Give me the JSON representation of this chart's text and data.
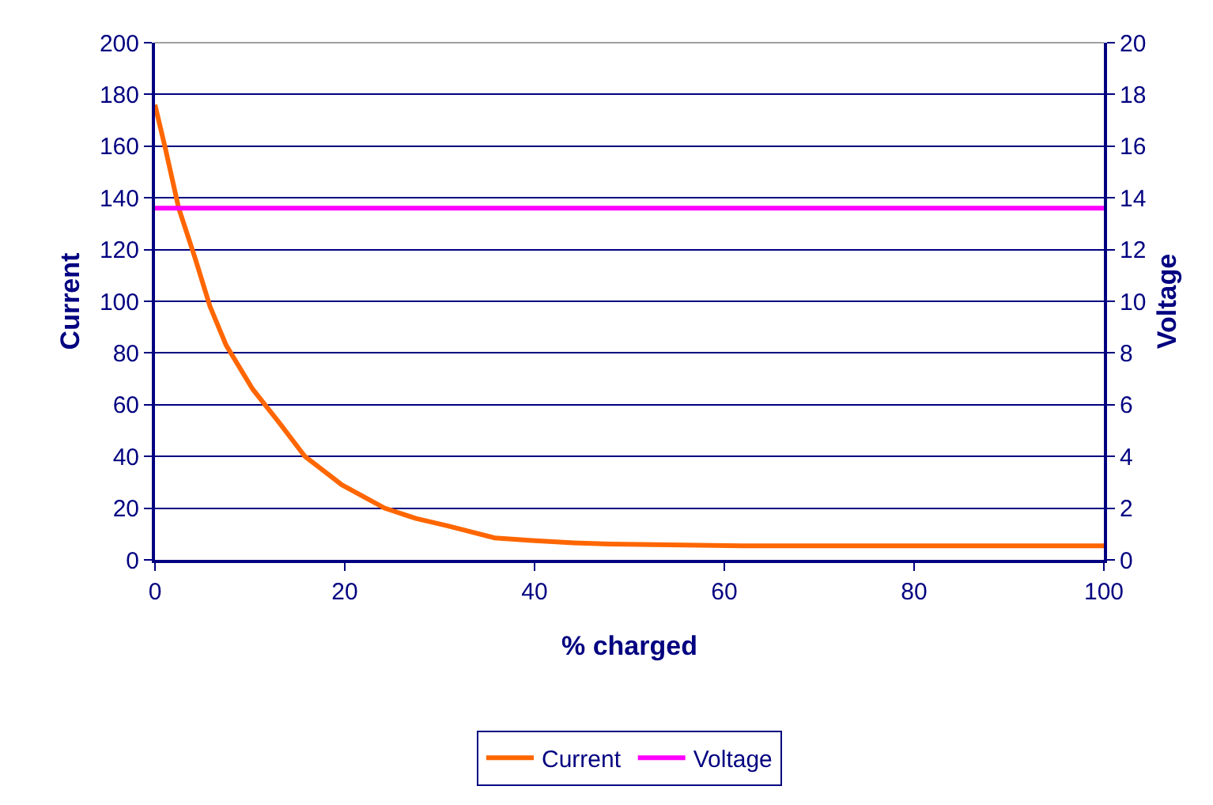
{
  "chart_data": {
    "type": "line",
    "xlabel": "% charged",
    "ylabel": "Current",
    "y2label": "Voltage",
    "x": [
      0,
      1.1,
      2.5,
      4.2,
      5.8,
      7.5,
      10.3,
      13.1,
      15.8,
      19.7,
      24.2,
      27.5,
      30.8,
      35.8,
      39.7,
      44.1,
      48.0,
      61.9,
      100
    ],
    "series": [
      {
        "name": "Current",
        "color": "#ff6600",
        "values": [
          176,
          159,
          136,
          117,
          98,
          83,
          66,
          53,
          40,
          29,
          20,
          16,
          13.2,
          8.5,
          7.5,
          6.6,
          6.1,
          5.4,
          5.4
        ]
      },
      {
        "name": "Voltage",
        "color": "#ff00ff",
        "axis": "y2",
        "x": [
          0,
          100
        ],
        "values": [
          13.6,
          13.6
        ]
      }
    ],
    "xlim": [
      0,
      100
    ],
    "xticks": [
      0,
      20,
      40,
      60,
      80,
      100
    ],
    "ylim": [
      0,
      200
    ],
    "yticks": [
      0,
      20,
      40,
      60,
      80,
      100,
      120,
      140,
      160,
      180,
      200
    ],
    "y2lim": [
      0,
      20
    ],
    "y2ticks": [
      0,
      2,
      4,
      6,
      8,
      10,
      12,
      14,
      16,
      18,
      20
    ],
    "grid": "y",
    "legend": "bottom",
    "marker": "none",
    "line_style": "solid"
  }
}
